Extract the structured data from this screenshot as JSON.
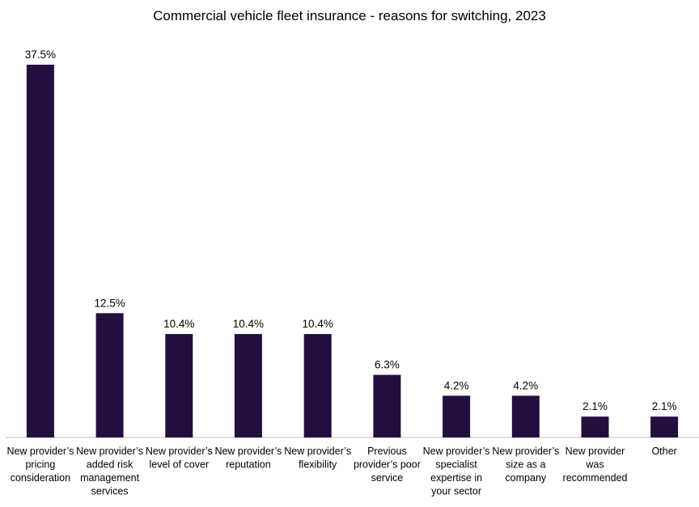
{
  "chart_data": {
    "type": "bar",
    "title": "Commercial vehicle fleet insurance - reasons for switching, 2023",
    "xlabel": "",
    "ylabel": "",
    "ylim": [
      0,
      37.5
    ],
    "grid": false,
    "legend": false,
    "bar_color": "#220f40",
    "categories": [
      [
        "New provider’s",
        "pricing",
        "consideration"
      ],
      [
        "New provider’s",
        "added risk",
        "management",
        "services"
      ],
      [
        "New provider’s",
        "level of cover"
      ],
      [
        "New provider’s",
        "reputation"
      ],
      [
        "New provider’s",
        "flexibility"
      ],
      [
        "Previous",
        "provider’s poor",
        "service"
      ],
      [
        "New provider’s",
        "specialist",
        "expertise in",
        "your sector"
      ],
      [
        "New provider’s",
        "size as a",
        "company"
      ],
      [
        "New provider",
        "was",
        "recommended"
      ],
      [
        "Other"
      ]
    ],
    "values": [
      37.5,
      12.5,
      10.4,
      10.4,
      10.4,
      6.3,
      4.2,
      4.2,
      2.1,
      2.1
    ],
    "value_labels": [
      "37.5%",
      "12.5%",
      "10.4%",
      "10.4%",
      "10.4%",
      "6.3%",
      "4.2%",
      "4.2%",
      "2.1%",
      "2.1%"
    ]
  }
}
